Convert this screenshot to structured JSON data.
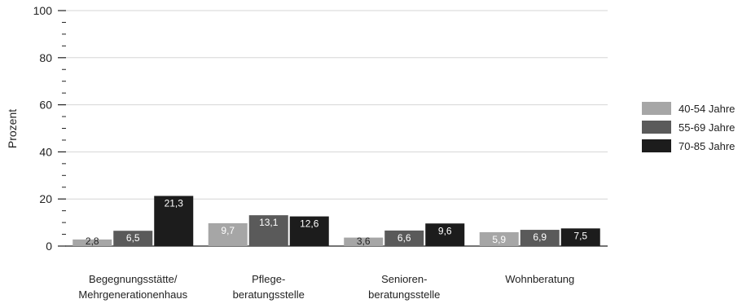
{
  "chart_data": {
    "type": "bar",
    "title": "",
    "xlabel": "",
    "ylabel": "Prozent",
    "ylim": [
      0,
      100
    ],
    "yticks": [
      "0",
      "20",
      "40",
      "60",
      "80",
      "100"
    ],
    "grid": true,
    "legend_position": "right",
    "categories": [
      [
        "Begegnungsstätte/",
        "Mehrgenerationenhaus"
      ],
      [
        "Pflege-",
        "beratungsstelle"
      ],
      [
        "Senioren-",
        "beratungsstelle"
      ],
      [
        "Wohnberatung"
      ]
    ],
    "series": [
      {
        "name": "40-54 Jahre",
        "color": "#a6a6a6",
        "values": [
          2.8,
          9.7,
          3.6,
          5.9
        ],
        "labels": [
          "2,8",
          "9,7",
          "3,6",
          "5,9"
        ]
      },
      {
        "name": "55-69 Jahre",
        "color": "#5a5a5a",
        "values": [
          6.5,
          13.1,
          6.6,
          6.9
        ],
        "labels": [
          "6,5",
          "13,1",
          "6,6",
          "6,9"
        ]
      },
      {
        "name": "70-85 Jahre",
        "color": "#1c1c1c",
        "values": [
          21.3,
          12.6,
          9.6,
          7.5
        ],
        "labels": [
          "21,3",
          "12,6",
          "9,6",
          "7,5"
        ]
      }
    ]
  }
}
